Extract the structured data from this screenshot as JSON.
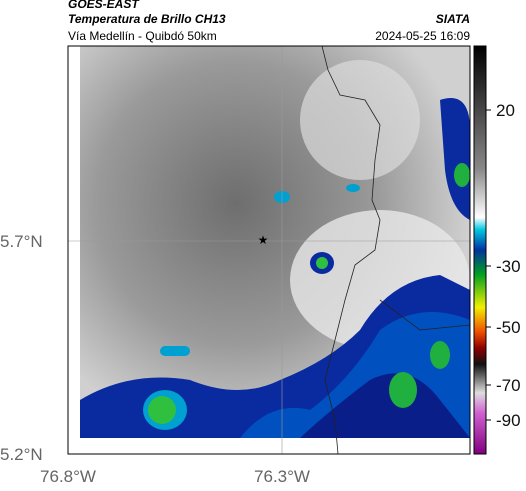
{
  "header": {
    "title": "GOES-EAST",
    "subtitle": "Temperatura de Brillo CH13",
    "location": "Vía Medellín - Quibdó 50km",
    "source": "SIATA",
    "datetime": "2024-05-25 16:09"
  },
  "map": {
    "lat_labels": [
      "5.7°N",
      "5.2°N"
    ],
    "lon_labels": [
      "76.8°W",
      "76.3°W"
    ]
  },
  "colorbar": {
    "ticks": [
      20,
      -30,
      -50,
      -70,
      -90
    ]
  }
}
